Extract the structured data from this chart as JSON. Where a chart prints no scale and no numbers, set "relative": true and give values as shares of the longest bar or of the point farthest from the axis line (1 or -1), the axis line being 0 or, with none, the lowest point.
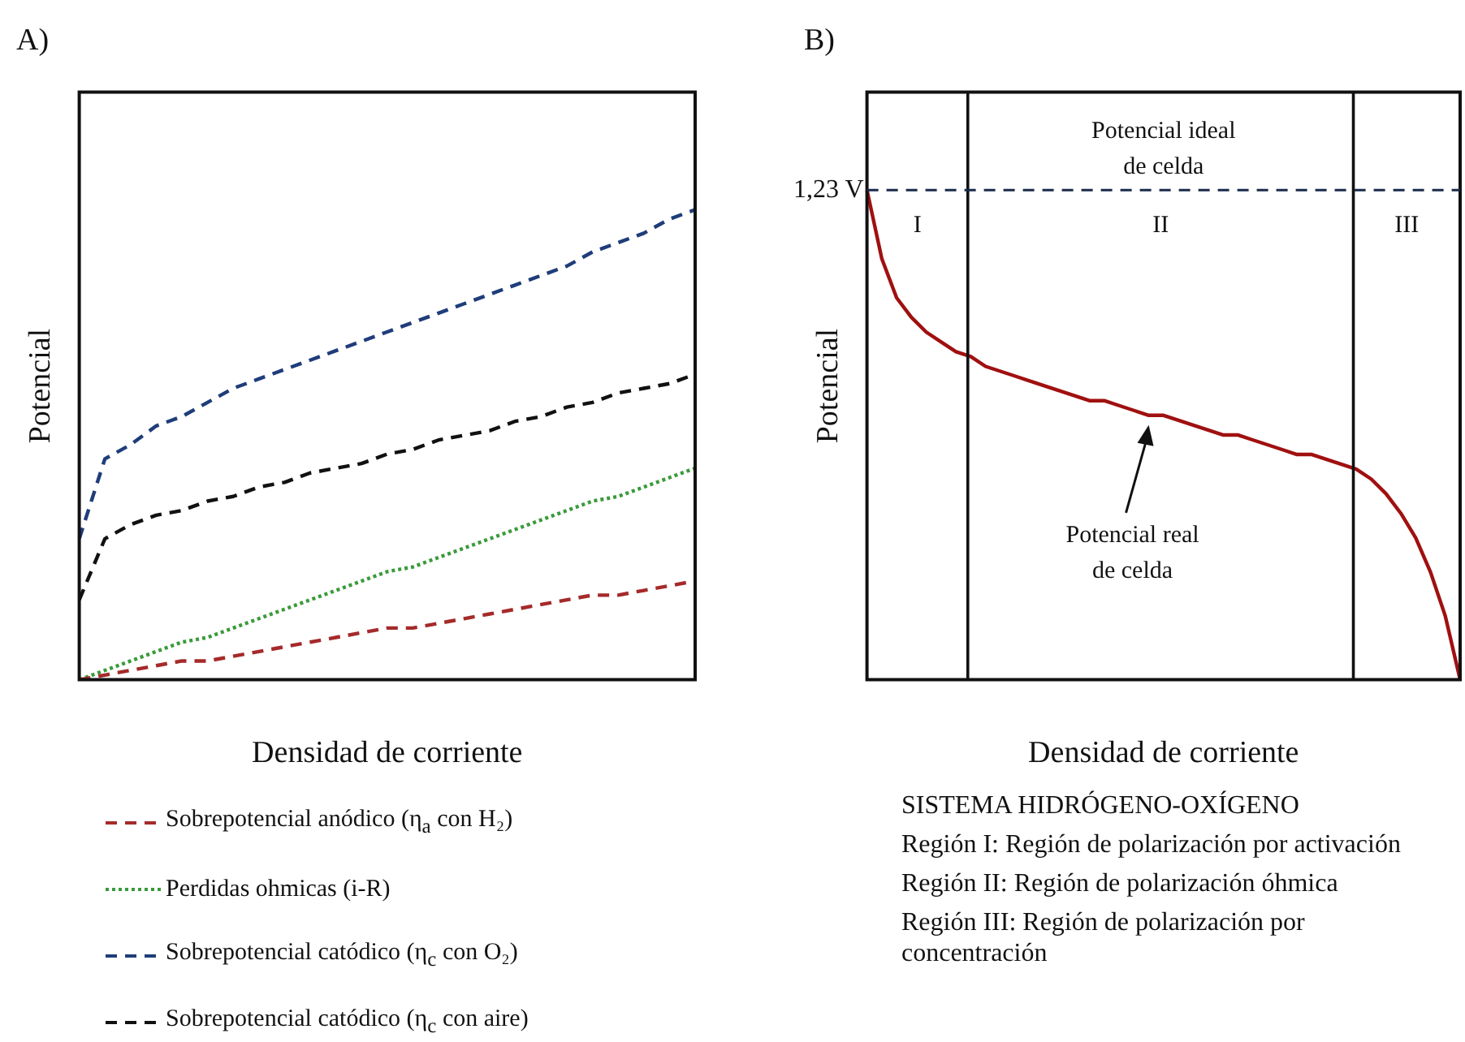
{
  "chart_data": [
    {
      "type": "line",
      "title": "A)",
      "xlabel": "Densidad de corriente",
      "ylabel": "Potencial",
      "relative": true,
      "grid": false,
      "legend": "bottom",
      "marker": "none",
      "categories": [
        null,
        null,
        null,
        null,
        null,
        null,
        null,
        null,
        null,
        null,
        null,
        null,
        null,
        null,
        null,
        null,
        null,
        null,
        null,
        null,
        null,
        null,
        null,
        null,
        null
      ],
      "series": [
        {
          "name": "Sobrepotencial anódico (η$_{a}$ con H₂)",
          "color": "#a52a2a",
          "line_style": "dashed",
          "values": [
            0,
            0.01,
            0.02,
            0.03,
            0.04,
            0.04,
            0.05,
            0.06,
            0.07,
            0.08,
            0.09,
            0.1,
            0.11,
            0.11,
            0.12,
            0.13,
            0.14,
            0.15,
            0.16,
            0.17,
            0.18,
            0.18,
            0.19,
            0.2,
            0.21
          ]
        },
        {
          "name": "Perdidas ohmicas (i-R)",
          "color": "#3a9a3a",
          "line_style": "dotted",
          "values": [
            0,
            0.02,
            0.04,
            0.06,
            0.08,
            0.09,
            0.11,
            0.13,
            0.15,
            0.17,
            0.19,
            0.21,
            0.23,
            0.24,
            0.26,
            0.28,
            0.3,
            0.32,
            0.34,
            0.36,
            0.38,
            0.39,
            0.41,
            0.43,
            0.45
          ]
        },
        {
          "name": "Sobrepotencial catódico (η$_{c}$ con O₂)",
          "color": "#1f3d7a",
          "line_style": "dashed",
          "values": [
            0.3,
            0.47,
            0.5,
            0.54,
            0.56,
            0.59,
            0.62,
            0.64,
            0.66,
            0.68,
            0.7,
            0.72,
            0.74,
            0.76,
            0.78,
            0.8,
            0.82,
            0.84,
            0.86,
            0.88,
            0.91,
            0.93,
            0.95,
            0.98,
            1
          ]
        },
        {
          "name": "Sobrepotencial catódico (η$_{c}$ con aire)",
          "color": "#111111",
          "line_style": "dashed",
          "values": [
            0.17,
            0.3,
            0.33,
            0.35,
            0.36,
            0.38,
            0.39,
            0.41,
            0.42,
            0.44,
            0.45,
            0.46,
            0.48,
            0.49,
            0.51,
            0.52,
            0.53,
            0.55,
            0.56,
            0.58,
            0.59,
            0.61,
            0.62,
            0.63,
            0.65
          ]
        }
      ]
    },
    {
      "type": "line",
      "title": "B)",
      "xlabel": "Densidad de corriente",
      "ylabel": "Potencial",
      "relative": true,
      "grid": false,
      "marker": "none",
      "categories": [
        null,
        null,
        null,
        null,
        null,
        null,
        null,
        null,
        null,
        null,
        null,
        null,
        null,
        null,
        null,
        null,
        null,
        null,
        null,
        null,
        null,
        null,
        null,
        null,
        null,
        null,
        null,
        null,
        null,
        null,
        null,
        null,
        null,
        null,
        null,
        null,
        null,
        null,
        null,
        null,
        null
      ],
      "series": [
        {
          "color": "#a01010",
          "values": [
            1,
            0.86,
            0.78,
            0.74,
            0.71,
            0.69,
            0.67,
            0.66,
            0.64,
            0.63,
            0.62,
            0.61,
            0.6,
            0.59,
            0.58,
            0.57,
            0.57,
            0.56,
            0.55,
            0.54,
            0.54,
            0.53,
            0.52,
            0.51,
            0.5,
            0.5,
            0.49,
            0.48,
            0.47,
            0.46,
            0.46,
            0.45,
            0.44,
            0.43,
            0.41,
            0.38,
            0.34,
            0.29,
            0.22,
            0.13,
            0
          ]
        }
      ],
      "ref_lines": [
        {
          "axis": "y",
          "value": 1,
          "label": "1,23 V",
          "color": "#1a2a4a",
          "line_style": "dashed"
        }
      ],
      "annotations": [
        {
          "text": "Potencial ideal\nde celda",
          "y": 1
        },
        "I",
        "II",
        "III",
        "Potencial real\nde celda",
        "SISTEMA  HIDRÓGENO-OXÍGENO",
        "Región I: Región de polarización por activación",
        "Región II: Región de polarización óhmica",
        "Región III: Región de polarización por concentración"
      ]
    }
  ]
}
